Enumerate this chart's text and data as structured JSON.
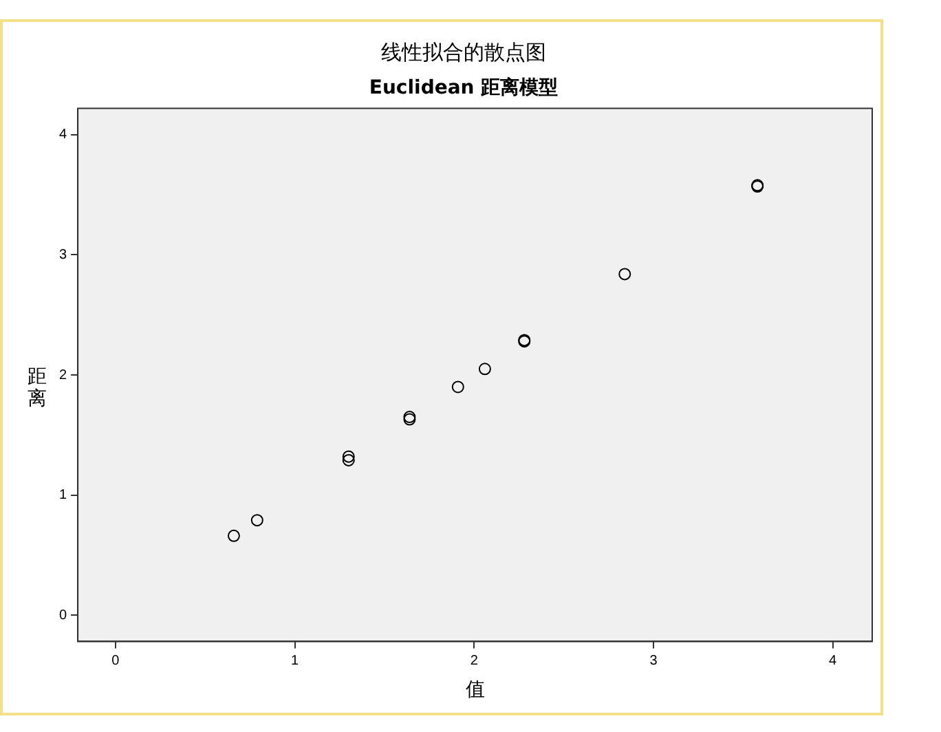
{
  "chart_data": {
    "type": "scatter",
    "title": "线性拟合的散点图",
    "subtitle": "Euclidean 距离模型",
    "xlabel": "值",
    "ylabel": "距离",
    "x": [
      0.66,
      0.79,
      1.3,
      1.3,
      1.64,
      1.64,
      1.91,
      2.06,
      2.28,
      2.28,
      2.84,
      3.58,
      3.58
    ],
    "series": [
      {
        "color": "#000000",
        "values": [
          0.66,
          0.79,
          1.32,
          1.29,
          1.65,
          1.63,
          1.9,
          2.05,
          2.29,
          2.28,
          2.84,
          3.58,
          3.57
        ]
      }
    ],
    "xlim": [
      -0.21,
      4.22
    ],
    "ylim": [
      -0.22,
      4.22
    ],
    "xticks": [
      0,
      1,
      2,
      3,
      4
    ],
    "yticks": [
      0,
      1,
      2,
      3,
      4
    ],
    "grid": false,
    "legend": false,
    "marker": "circle"
  }
}
